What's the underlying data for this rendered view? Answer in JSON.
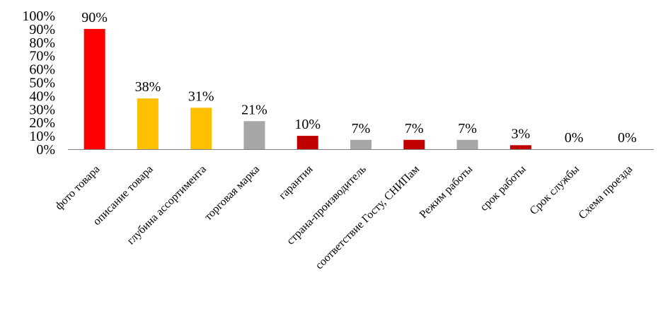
{
  "chart_data": {
    "type": "bar",
    "title": "",
    "xlabel": "",
    "ylabel": "",
    "ylim": [
      0,
      100
    ],
    "yticks": [
      "0%",
      "10%",
      "20%",
      "30%",
      "40%",
      "50%",
      "60%",
      "70%",
      "80%",
      "90%",
      "100%"
    ],
    "grid": false,
    "legend": "none",
    "categories": [
      "фото товара",
      "описание товара",
      "глубина ассортимента",
      "торговая марка",
      "гарантия",
      "страна-производитель",
      "соответствие Госту, СНИПам",
      "Режим работы",
      "срок работы",
      "Срок службы",
      "Схема проезда"
    ],
    "values": [
      90,
      38,
      31,
      21,
      10,
      7,
      7,
      7,
      3,
      0,
      0
    ],
    "data_labels": [
      "90%",
      "38%",
      "31%",
      "21%",
      "10%",
      "7%",
      "7%",
      "7%",
      "3%",
      "0%",
      "0%"
    ],
    "colors": [
      "#ff0000",
      "#ffc000",
      "#ffc000",
      "#a6a6a6",
      "#c00000",
      "#a6a6a6",
      "#c00000",
      "#a6a6a6",
      "#c00000",
      "#a6a6a6",
      "#a6a6a6"
    ]
  }
}
